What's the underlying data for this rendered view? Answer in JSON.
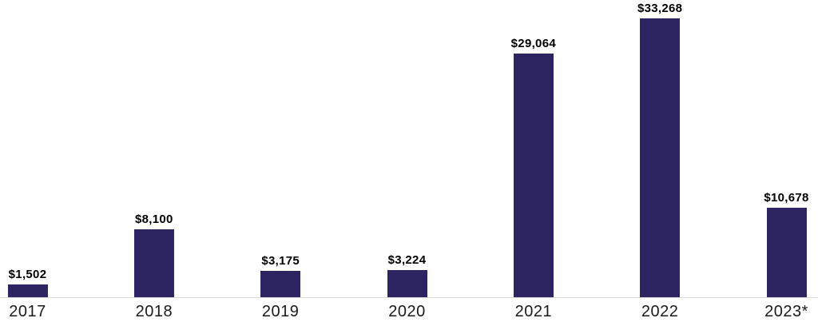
{
  "chart_data": {
    "type": "bar",
    "title": "",
    "xlabel": "",
    "ylabel": "",
    "categories": [
      "2017",
      "2018",
      "2019",
      "2020",
      "2021",
      "2022",
      "2023*"
    ],
    "values": [
      1502,
      8100,
      3175,
      3224,
      29064,
      33268,
      10678
    ],
    "value_labels": [
      "$1,502",
      "$8,100",
      "$3,175",
      "$3,224",
      "$29,064",
      "$33,268",
      "$10,678"
    ],
    "ylim": [
      0,
      33268
    ],
    "grid": false,
    "legend": false,
    "axis_labels_visible": false,
    "bar_color": "#2C2562",
    "axis_line_color": "#D9D9D9",
    "value_label_color": "#000000",
    "tick_label_color": "#1A1A1A"
  }
}
